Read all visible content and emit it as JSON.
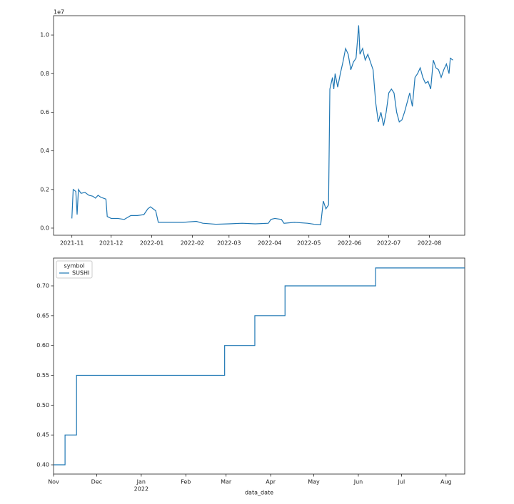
{
  "chart_data": [
    {
      "type": "line",
      "y_offset_text": "1e7",
      "xlim": [
        -14,
        300
      ],
      "xticks": [
        {
          "value": 0,
          "label": "2021-11"
        },
        {
          "value": 30,
          "label": "2021-12"
        },
        {
          "value": 61,
          "label": "2022-01"
        },
        {
          "value": 92,
          "label": "2022-02"
        },
        {
          "value": 120,
          "label": "2022-03"
        },
        {
          "value": 151,
          "label": "2022-04"
        },
        {
          "value": 181,
          "label": "2022-05"
        },
        {
          "value": 212,
          "label": "2022-06"
        },
        {
          "value": 242,
          "label": "2022-07"
        },
        {
          "value": 273,
          "label": "2022-08"
        }
      ],
      "ylim": [
        -0.037,
        1.1
      ],
      "yticks": [
        {
          "value": 0,
          "label": "0.0"
        },
        0.2,
        0.4,
        0.6,
        0.8,
        {
          "value": 1,
          "label": "1.0"
        }
      ],
      "x": [
        0,
        1,
        3,
        4,
        5,
        7,
        10,
        13,
        16,
        18,
        20,
        22,
        24,
        26,
        27,
        30,
        35,
        40,
        45,
        50,
        55,
        58,
        60,
        62,
        64,
        66,
        75,
        85,
        95,
        100,
        110,
        120,
        130,
        140,
        150,
        152,
        155,
        160,
        162,
        170,
        180,
        185,
        190,
        192,
        194,
        196,
        197,
        199,
        200,
        201,
        203,
        205,
        207,
        209,
        211,
        213,
        215,
        217,
        219,
        220,
        222,
        224,
        226,
        228,
        230,
        232,
        234,
        236,
        238,
        240,
        242,
        244,
        246,
        248,
        250,
        252,
        254,
        256,
        258,
        260,
        262,
        264,
        266,
        268,
        270,
        272,
        274,
        276,
        278,
        280,
        282,
        284,
        286,
        288,
        289,
        291
      ],
      "series": [
        {
          "color": "#1f77b4",
          "values": [
            0.05,
            0.2,
            0.19,
            0.07,
            0.2,
            0.18,
            0.185,
            0.17,
            0.165,
            0.155,
            0.17,
            0.16,
            0.155,
            0.15,
            0.06,
            0.05,
            0.05,
            0.045,
            0.065,
            0.065,
            0.07,
            0.1,
            0.11,
            0.1,
            0.09,
            0.03,
            0.03,
            0.03,
            0.035,
            0.025,
            0.02,
            0.022,
            0.025,
            0.022,
            0.025,
            0.045,
            0.05,
            0.045,
            0.025,
            0.03,
            0.025,
            0.02,
            0.018,
            0.14,
            0.1,
            0.12,
            0.72,
            0.78,
            0.72,
            0.8,
            0.73,
            0.8,
            0.86,
            0.93,
            0.9,
            0.82,
            0.86,
            0.88,
            1.05,
            0.9,
            0.93,
            0.87,
            0.9,
            0.86,
            0.82,
            0.65,
            0.55,
            0.6,
            0.53,
            0.6,
            0.7,
            0.72,
            0.7,
            0.6,
            0.55,
            0.56,
            0.6,
            0.65,
            0.7,
            0.63,
            0.78,
            0.8,
            0.83,
            0.78,
            0.75,
            0.76,
            0.72,
            0.87,
            0.83,
            0.82,
            0.78,
            0.82,
            0.85,
            0.8,
            0.88,
            0.87
          ]
        }
      ]
    },
    {
      "type": "line",
      "drawstyle": "steps-post",
      "x_label": "data_date",
      "x_year_label": "2022",
      "legend_title": "symbol",
      "legend": "upper left",
      "xlim": [
        0,
        286
      ],
      "xticks": [
        {
          "value": 0,
          "label": "Nov"
        },
        {
          "value": 30,
          "label": "Dec"
        },
        {
          "value": 61,
          "label": "Jan"
        },
        {
          "value": 92,
          "label": "Feb"
        },
        {
          "value": 120,
          "label": "Mar"
        },
        {
          "value": 151,
          "label": "Apr"
        },
        {
          "value": 181,
          "label": "May"
        },
        {
          "value": 212,
          "label": "Jun"
        },
        {
          "value": 242,
          "label": "Jul"
        },
        {
          "value": 273,
          "label": "Aug"
        }
      ],
      "ylim": [
        0.3845,
        0.7466
      ],
      "yticks": [
        {
          "value": 0.4,
          "label": "0.40"
        },
        0.45,
        {
          "value": 0.5,
          "label": "0.50"
        },
        0.55,
        {
          "value": 0.6,
          "label": "0.60"
        },
        0.65,
        {
          "value": 0.7,
          "label": "0.70"
        }
      ],
      "x": [
        0,
        8,
        16,
        119,
        140,
        161,
        224,
        286
      ],
      "series": [
        {
          "name": "SUSHI",
          "color": "#1f77b4",
          "values": [
            0.4,
            0.45,
            0.55,
            0.6,
            0.65,
            0.7,
            0.73,
            0.73
          ]
        }
      ]
    }
  ]
}
